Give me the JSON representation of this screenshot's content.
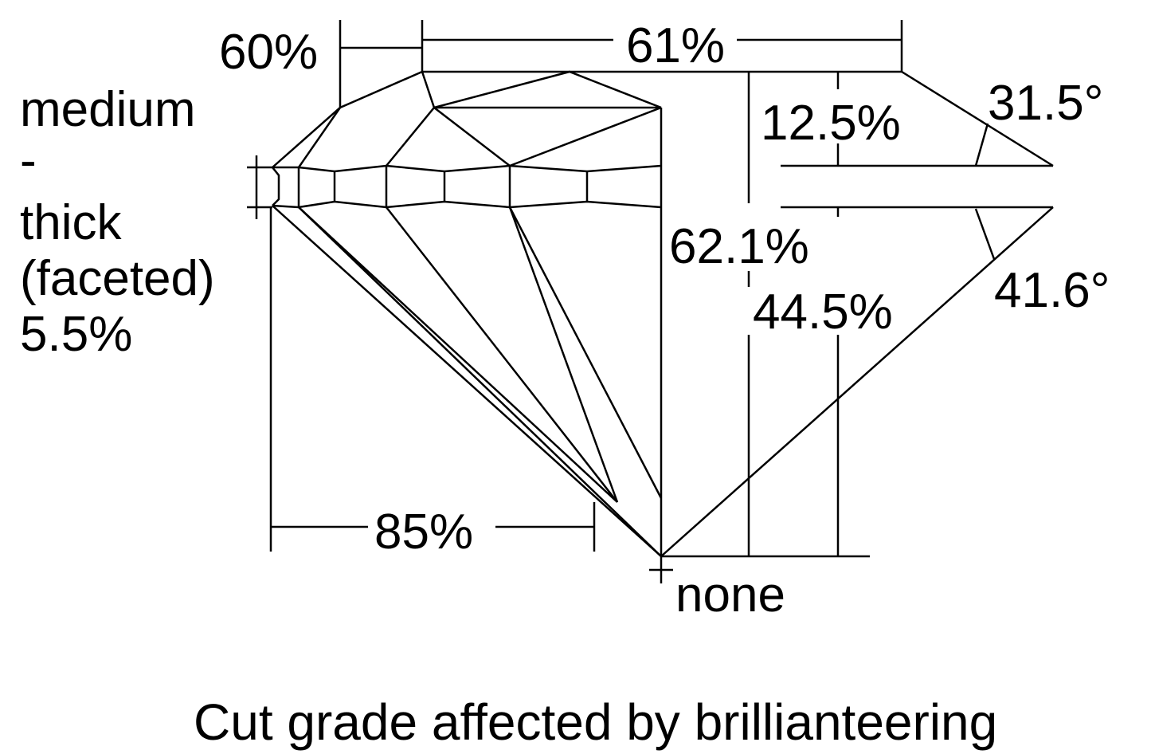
{
  "labels": {
    "table_crown": "60%",
    "table": "61%",
    "crown_height": "12.5%",
    "crown_angle": "31.5°",
    "girdle": [
      "medium",
      "-",
      "thick",
      "(faceted)",
      "5.5%"
    ],
    "total_depth": "62.1%",
    "pavilion_depth": "44.5%",
    "pavilion_angle": "41.6°",
    "lower_half": "85%",
    "culet": "none"
  },
  "caption": "Cut grade affected by brillianteering"
}
